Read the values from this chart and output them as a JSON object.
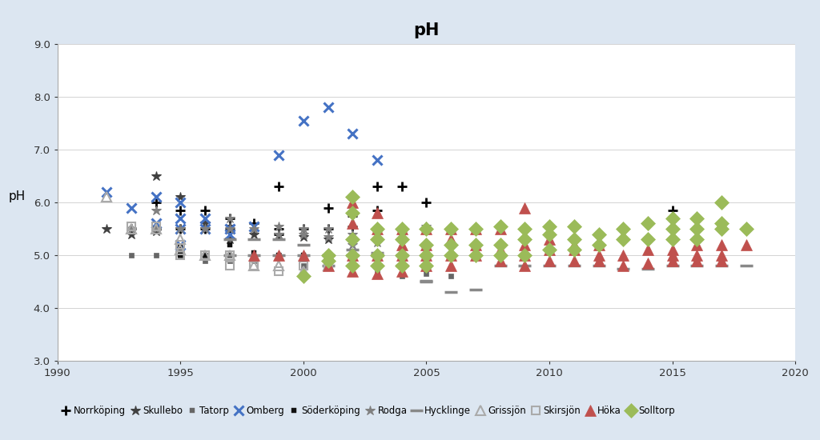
{
  "title": "pH",
  "ylabel": "pH",
  "xlim": [
    1990,
    2020
  ],
  "ylim": [
    3.0,
    9.0
  ],
  "yticks": [
    3.0,
    4.0,
    5.0,
    6.0,
    7.0,
    8.0,
    9.0
  ],
  "xticks": [
    1990,
    1995,
    2000,
    2005,
    2010,
    2015,
    2020
  ],
  "bg_color": "#dce6f1",
  "plot_bg": "#ffffff",
  "Norrköping": {
    "color": "#000000",
    "marker": "+",
    "ms": 8,
    "mew": 2.0,
    "mfc": "none",
    "data": [
      [
        1993,
        5.5
      ],
      [
        1994,
        5.5
      ],
      [
        1994,
        6.0
      ],
      [
        1995,
        5.5
      ],
      [
        1995,
        5.85
      ],
      [
        1996,
        5.5
      ],
      [
        1996,
        5.85
      ],
      [
        1997,
        5.5
      ],
      [
        1997,
        5.7
      ],
      [
        1998,
        5.6
      ],
      [
        1999,
        5.4
      ],
      [
        1999,
        5.5
      ],
      [
        1999,
        6.3
      ],
      [
        2000,
        5.5
      ],
      [
        2001,
        5.5
      ],
      [
        2001,
        5.9
      ],
      [
        2002,
        5.55
      ],
      [
        2002,
        5.75
      ],
      [
        2003,
        5.85
      ],
      [
        2003,
        6.3
      ],
      [
        2004,
        6.3
      ],
      [
        2005,
        6.0
      ],
      [
        2006,
        5.5
      ],
      [
        2007,
        5.5
      ],
      [
        2015,
        5.85
      ],
      [
        2016,
        5.5
      ],
      [
        2017,
        5.5
      ]
    ]
  },
  "Skullebo": {
    "color": "#404040",
    "marker": "*",
    "ms": 9,
    "mew": 0.8,
    "mfc": "#404040",
    "data": [
      [
        1992,
        5.5
      ],
      [
        1993,
        5.4
      ],
      [
        1994,
        5.45
      ],
      [
        1994,
        6.5
      ],
      [
        1995,
        5.5
      ],
      [
        1995,
        6.1
      ],
      [
        1996,
        5.5
      ],
      [
        1996,
        5.6
      ],
      [
        1997,
        5.3
      ],
      [
        1997,
        5.55
      ],
      [
        1998,
        5.4
      ],
      [
        1999,
        5.4
      ],
      [
        2000,
        5.35
      ],
      [
        2001,
        5.3
      ]
    ]
  },
  "Tatorp": {
    "color": "#666666",
    "marker": "s",
    "ms": 5,
    "mew": 0.5,
    "mfc": "#666666",
    "data": [
      [
        1993,
        5.0
      ],
      [
        1994,
        5.0
      ],
      [
        1995,
        5.0
      ],
      [
        1995,
        5.1
      ],
      [
        1996,
        4.9
      ],
      [
        1996,
        5.0
      ],
      [
        1997,
        4.9
      ],
      [
        1998,
        4.9
      ],
      [
        1999,
        5.0
      ],
      [
        2000,
        4.8
      ],
      [
        2001,
        4.8
      ],
      [
        2002,
        4.8
      ],
      [
        2003,
        4.7
      ],
      [
        2004,
        4.6
      ],
      [
        2005,
        4.65
      ],
      [
        2006,
        4.6
      ]
    ]
  },
  "Omberg": {
    "color": "#4472C4",
    "marker": "x",
    "ms": 9,
    "mew": 2.2,
    "mfc": "none",
    "data": [
      [
        1992,
        6.2
      ],
      [
        1993,
        5.9
      ],
      [
        1994,
        5.6
      ],
      [
        1994,
        6.1
      ],
      [
        1995,
        5.2
      ],
      [
        1995,
        5.5
      ],
      [
        1995,
        5.7
      ],
      [
        1995,
        6.0
      ],
      [
        1996,
        5.5
      ],
      [
        1996,
        5.7
      ],
      [
        1997,
        5.4
      ],
      [
        1997,
        5.5
      ],
      [
        1998,
        5.55
      ],
      [
        1999,
        6.9
      ],
      [
        2000,
        7.55
      ],
      [
        2001,
        7.8
      ],
      [
        2002,
        7.3
      ],
      [
        2003,
        6.8
      ]
    ]
  },
  "Söderköping": {
    "color": "#111111",
    "marker": "s",
    "ms": 4,
    "mew": 0.3,
    "mfc": "#111111",
    "data": [
      [
        1993,
        5.5
      ],
      [
        1994,
        5.5
      ],
      [
        1995,
        5.0
      ],
      [
        1995,
        5.15
      ],
      [
        1996,
        5.0
      ],
      [
        1997,
        5.0
      ],
      [
        1997,
        5.2
      ],
      [
        1998,
        5.05
      ],
      [
        1999,
        5.0
      ],
      [
        2000,
        5.0
      ],
      [
        2001,
        5.0
      ],
      [
        2002,
        5.0
      ]
    ]
  },
  "Rodga": {
    "color": "#808080",
    "marker": "*",
    "ms": 9,
    "mew": 0.8,
    "mfc": "#808080",
    "data": [
      [
        1993,
        5.5
      ],
      [
        1994,
        5.5
      ],
      [
        1994,
        5.85
      ],
      [
        1995,
        5.5
      ],
      [
        1996,
        5.5
      ],
      [
        1997,
        5.5
      ],
      [
        1997,
        5.7
      ],
      [
        1998,
        5.5
      ],
      [
        1999,
        5.4
      ],
      [
        1999,
        5.55
      ],
      [
        2000,
        5.4
      ],
      [
        2000,
        5.5
      ],
      [
        2001,
        5.35
      ],
      [
        2001,
        5.5
      ],
      [
        2002,
        5.2
      ],
      [
        2002,
        5.4
      ],
      [
        2003,
        5.25
      ],
      [
        2004,
        5.4
      ],
      [
        2005,
        5.55
      ]
    ]
  },
  "Hycklinge": {
    "color": "#888888",
    "marker": "_",
    "ms": 12,
    "mew": 2.5,
    "mfc": "none",
    "data": [
      [
        1997,
        5.0
      ],
      [
        1997,
        5.3
      ],
      [
        1998,
        5.0
      ],
      [
        1998,
        5.3
      ],
      [
        1999,
        5.0
      ],
      [
        1999,
        5.3
      ],
      [
        2000,
        5.0
      ],
      [
        2000,
        5.2
      ],
      [
        2001,
        4.8
      ],
      [
        2001,
        5.0
      ],
      [
        2002,
        5.0
      ],
      [
        2002,
        5.1
      ],
      [
        2003,
        5.0
      ],
      [
        2003,
        5.05
      ],
      [
        2004,
        4.8
      ],
      [
        2004,
        5.0
      ],
      [
        2005,
        4.5
      ],
      [
        2005,
        4.52
      ],
      [
        2006,
        4.3
      ],
      [
        2007,
        4.35
      ],
      [
        2008,
        4.8
      ],
      [
        2009,
        4.8
      ],
      [
        2010,
        4.8
      ],
      [
        2011,
        4.8
      ],
      [
        2012,
        4.8
      ],
      [
        2013,
        4.75
      ],
      [
        2014,
        4.75
      ],
      [
        2015,
        4.8
      ],
      [
        2016,
        4.8
      ],
      [
        2017,
        4.8
      ],
      [
        2018,
        4.8
      ]
    ]
  },
  "Grissjön": {
    "color": "#aaaaaa",
    "marker": "^",
    "ms": 8,
    "mew": 1.5,
    "mfc": "none",
    "data": [
      [
        1992,
        6.1
      ],
      [
        1993,
        5.5
      ],
      [
        1994,
        5.5
      ],
      [
        1995,
        5.1
      ],
      [
        1995,
        5.3
      ],
      [
        1996,
        5.0
      ],
      [
        1997,
        5.0
      ],
      [
        1998,
        4.8
      ],
      [
        1999,
        4.8
      ],
      [
        2000,
        4.7
      ],
      [
        2001,
        4.8
      ]
    ]
  },
  "Skirsjön": {
    "color": "#aaaaaa",
    "marker": "s",
    "ms": 7,
    "mew": 1.5,
    "mfc": "none",
    "data": [
      [
        1993,
        5.55
      ],
      [
        1994,
        5.55
      ],
      [
        1995,
        5.0
      ],
      [
        1995,
        5.2
      ],
      [
        1996,
        5.0
      ],
      [
        1997,
        4.8
      ],
      [
        1997,
        5.0
      ],
      [
        1998,
        4.8
      ],
      [
        1999,
        4.7
      ],
      [
        2000,
        4.8
      ],
      [
        2001,
        4.8
      ]
    ]
  },
  "Höka": {
    "color": "#C0504D",
    "marker": "^",
    "ms": 10,
    "mew": 0.5,
    "mfc": "#C0504D",
    "data": [
      [
        1998,
        5.0
      ],
      [
        1999,
        5.0
      ],
      [
        2000,
        5.0
      ],
      [
        2001,
        5.0
      ],
      [
        2001,
        4.8
      ],
      [
        2002,
        4.7
      ],
      [
        2002,
        5.0
      ],
      [
        2002,
        5.6
      ],
      [
        2002,
        6.0
      ],
      [
        2003,
        4.65
      ],
      [
        2003,
        5.0
      ],
      [
        2003,
        5.5
      ],
      [
        2003,
        5.8
      ],
      [
        2004,
        4.7
      ],
      [
        2004,
        5.0
      ],
      [
        2004,
        5.2
      ],
      [
        2004,
        5.5
      ],
      [
        2005,
        4.8
      ],
      [
        2005,
        5.0
      ],
      [
        2005,
        5.2
      ],
      [
        2005,
        5.5
      ],
      [
        2006,
        4.8
      ],
      [
        2006,
        5.0
      ],
      [
        2006,
        5.3
      ],
      [
        2006,
        5.5
      ],
      [
        2007,
        5.0
      ],
      [
        2007,
        5.2
      ],
      [
        2007,
        5.5
      ],
      [
        2008,
        4.9
      ],
      [
        2008,
        5.1
      ],
      [
        2008,
        5.5
      ],
      [
        2009,
        4.8
      ],
      [
        2009,
        5.0
      ],
      [
        2009,
        5.2
      ],
      [
        2009,
        5.9
      ],
      [
        2010,
        4.9
      ],
      [
        2010,
        5.1
      ],
      [
        2010,
        5.3
      ],
      [
        2011,
        4.9
      ],
      [
        2011,
        5.1
      ],
      [
        2011,
        5.2
      ],
      [
        2012,
        4.9
      ],
      [
        2012,
        5.0
      ],
      [
        2012,
        5.2
      ],
      [
        2013,
        4.8
      ],
      [
        2013,
        5.0
      ],
      [
        2014,
        4.85
      ],
      [
        2014,
        5.1
      ],
      [
        2015,
        4.9
      ],
      [
        2015,
        5.0
      ],
      [
        2015,
        5.1
      ],
      [
        2016,
        4.9
      ],
      [
        2016,
        5.0
      ],
      [
        2016,
        5.2
      ],
      [
        2017,
        4.9
      ],
      [
        2017,
        5.0
      ],
      [
        2017,
        5.2
      ],
      [
        2018,
        5.2
      ]
    ]
  },
  "Solltorp": {
    "color": "#9BBB59",
    "marker": "D",
    "ms": 9,
    "mew": 0.5,
    "mfc": "#9BBB59",
    "data": [
      [
        2000,
        4.6
      ],
      [
        2001,
        4.9
      ],
      [
        2001,
        5.0
      ],
      [
        2002,
        4.8
      ],
      [
        2002,
        5.0
      ],
      [
        2002,
        5.3
      ],
      [
        2002,
        5.8
      ],
      [
        2002,
        6.1
      ],
      [
        2003,
        4.8
      ],
      [
        2003,
        5.0
      ],
      [
        2003,
        5.3
      ],
      [
        2003,
        5.5
      ],
      [
        2004,
        4.8
      ],
      [
        2004,
        5.0
      ],
      [
        2004,
        5.3
      ],
      [
        2004,
        5.5
      ],
      [
        2005,
        4.8
      ],
      [
        2005,
        5.0
      ],
      [
        2005,
        5.2
      ],
      [
        2005,
        5.5
      ],
      [
        2006,
        5.0
      ],
      [
        2006,
        5.2
      ],
      [
        2006,
        5.5
      ],
      [
        2007,
        5.0
      ],
      [
        2007,
        5.2
      ],
      [
        2007,
        5.5
      ],
      [
        2008,
        5.0
      ],
      [
        2008,
        5.2
      ],
      [
        2008,
        5.55
      ],
      [
        2009,
        5.0
      ],
      [
        2009,
        5.3
      ],
      [
        2009,
        5.5
      ],
      [
        2010,
        5.1
      ],
      [
        2010,
        5.4
      ],
      [
        2010,
        5.55
      ],
      [
        2011,
        5.1
      ],
      [
        2011,
        5.3
      ],
      [
        2011,
        5.55
      ],
      [
        2012,
        5.2
      ],
      [
        2012,
        5.4
      ],
      [
        2013,
        5.3
      ],
      [
        2013,
        5.5
      ],
      [
        2014,
        5.3
      ],
      [
        2014,
        5.6
      ],
      [
        2015,
        5.3
      ],
      [
        2015,
        5.5
      ],
      [
        2015,
        5.7
      ],
      [
        2016,
        5.3
      ],
      [
        2016,
        5.5
      ],
      [
        2016,
        5.7
      ],
      [
        2017,
        5.5
      ],
      [
        2017,
        5.6
      ],
      [
        2017,
        6.0
      ],
      [
        2018,
        5.5
      ]
    ]
  },
  "series_order": [
    "Norrköping",
    "Skullebo",
    "Tatorp",
    "Omberg",
    "Söderköping",
    "Rodga",
    "Hycklinge",
    "Grissjön",
    "Skirsjön",
    "Höka",
    "Solltorp"
  ]
}
